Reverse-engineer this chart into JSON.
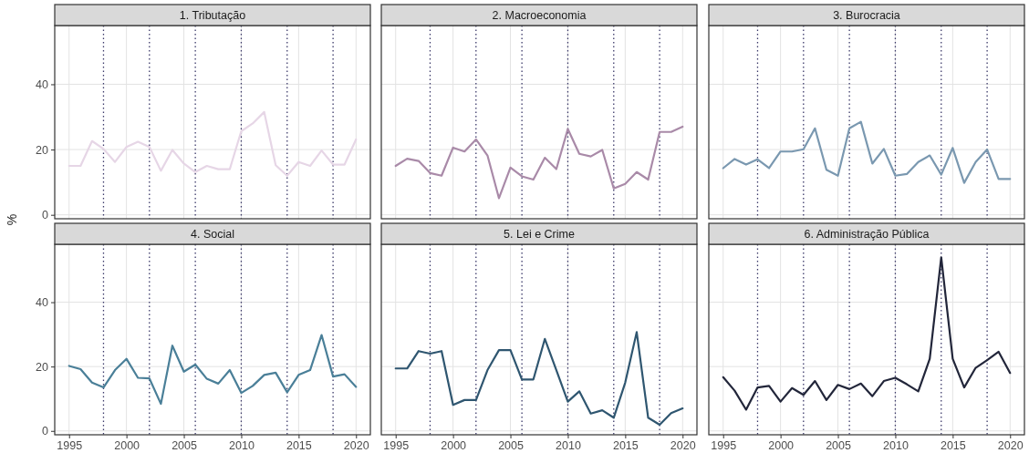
{
  "chart_data": [
    {
      "type": "line",
      "title": "1. Tributação",
      "ylabel": "%",
      "x": [
        1995,
        1996,
        1997,
        1998,
        1999,
        2000,
        2001,
        2002,
        2003,
        2004,
        2005,
        2006,
        2007,
        2008,
        2009,
        2010,
        2011,
        2012,
        2013,
        2014,
        2015,
        2016,
        2017,
        2018,
        2019,
        2020
      ],
      "series": [
        {
          "color": "#e6d6e6",
          "values": [
            15,
            15,
            22.6,
            20.2,
            16.2,
            20.8,
            22.4,
            20.8,
            13.5,
            19.9,
            15.7,
            13.1,
            15,
            14,
            14,
            25.6,
            28,
            31.5,
            15.2,
            12,
            16.2,
            15,
            19.7,
            15.4,
            15.4,
            23.1
          ]
        }
      ],
      "xlim": [
        1993.75,
        2021.25
      ],
      "ylim": [
        -1.2,
        58
      ],
      "xticks": [
        1995,
        2000,
        2005,
        2010,
        2015,
        2020
      ],
      "yticks": [
        0,
        20,
        40
      ],
      "grid": true,
      "tick_labels": "y",
      "ref_lines": [
        {
          "axis": "x",
          "value": 1998,
          "color": "#3c3a6a",
          "line_style": "dotted"
        },
        {
          "axis": "x",
          "value": 2002,
          "color": "#3c3a6a",
          "line_style": "dotted"
        },
        {
          "axis": "x",
          "value": 2006,
          "color": "#3c3a6a",
          "line_style": "dotted"
        },
        {
          "axis": "x",
          "value": 2010,
          "color": "#3c3a6a",
          "line_style": "dotted"
        },
        {
          "axis": "x",
          "value": 2014,
          "color": "#3c3a6a",
          "line_style": "dotted"
        },
        {
          "axis": "x",
          "value": 2018,
          "color": "#3c3a6a",
          "line_style": "dotted"
        }
      ]
    },
    {
      "type": "line",
      "title": "2. Macroeconomia",
      "x": [
        1995,
        1996,
        1997,
        1998,
        1999,
        2000,
        2001,
        2002,
        2003,
        2004,
        2005,
        2006,
        2007,
        2008,
        2009,
        2010,
        2011,
        2012,
        2013,
        2014,
        2015,
        2016,
        2017,
        2018,
        2019,
        2020
      ],
      "series": [
        {
          "color": "#a98aa8",
          "values": [
            15,
            17.2,
            16.5,
            12.8,
            12,
            20.6,
            19.4,
            23.1,
            18.2,
            5.1,
            14.5,
            11.8,
            10.8,
            17.5,
            14,
            26.3,
            18.7,
            17.9,
            19.9,
            8.1,
            9.5,
            13.1,
            10.8,
            25.4,
            25.4,
            27
          ]
        }
      ],
      "xlim": [
        1993.75,
        2021.25
      ],
      "ylim": [
        -1.2,
        58
      ],
      "xticks": [
        1995,
        2000,
        2005,
        2010,
        2015,
        2020
      ],
      "yticks": [
        0,
        20,
        40
      ],
      "grid": true,
      "tick_labels": false,
      "ref_lines": [
        {
          "axis": "x",
          "value": 1998,
          "color": "#3c3a6a",
          "line_style": "dotted"
        },
        {
          "axis": "x",
          "value": 2002,
          "color": "#3c3a6a",
          "line_style": "dotted"
        },
        {
          "axis": "x",
          "value": 2006,
          "color": "#3c3a6a",
          "line_style": "dotted"
        },
        {
          "axis": "x",
          "value": 2010,
          "color": "#3c3a6a",
          "line_style": "dotted"
        },
        {
          "axis": "x",
          "value": 2014,
          "color": "#3c3a6a",
          "line_style": "dotted"
        },
        {
          "axis": "x",
          "value": 2018,
          "color": "#3c3a6a",
          "line_style": "dotted"
        }
      ]
    },
    {
      "type": "line",
      "title": "3. Burocracia",
      "x": [
        1995,
        1996,
        1997,
        1998,
        1999,
        2000,
        2001,
        2002,
        2003,
        2004,
        2005,
        2006,
        2007,
        2008,
        2009,
        2010,
        2011,
        2012,
        2013,
        2014,
        2015,
        2016,
        2017,
        2018,
        2019,
        2020
      ],
      "series": [
        {
          "color": "#7a98b0",
          "values": [
            14.3,
            17.1,
            15.4,
            17,
            14.3,
            19.4,
            19.4,
            20.1,
            26.5,
            13.8,
            12,
            26.5,
            28.5,
            15.7,
            20.2,
            12,
            12.5,
            16.2,
            18.2,
            12.3,
            20.5,
            9.8,
            16.2,
            20,
            11,
            11
          ]
        }
      ],
      "xlim": [
        1993.75,
        2021.25
      ],
      "ylim": [
        -1.2,
        58
      ],
      "xticks": [
        1995,
        2000,
        2005,
        2010,
        2015,
        2020
      ],
      "yticks": [
        0,
        20,
        40
      ],
      "grid": true,
      "tick_labels": false,
      "ref_lines": [
        {
          "axis": "x",
          "value": 1998,
          "color": "#3c3a6a",
          "line_style": "dotted"
        },
        {
          "axis": "x",
          "value": 2002,
          "color": "#3c3a6a",
          "line_style": "dotted"
        },
        {
          "axis": "x",
          "value": 2006,
          "color": "#3c3a6a",
          "line_style": "dotted"
        },
        {
          "axis": "x",
          "value": 2010,
          "color": "#3c3a6a",
          "line_style": "dotted"
        },
        {
          "axis": "x",
          "value": 2014,
          "color": "#3c3a6a",
          "line_style": "dotted"
        },
        {
          "axis": "x",
          "value": 2018,
          "color": "#3c3a6a",
          "line_style": "dotted"
        }
      ]
    },
    {
      "type": "line",
      "title": "4. Social",
      "x": [
        1995,
        1996,
        1997,
        1998,
        1999,
        2000,
        2001,
        2002,
        2003,
        2004,
        2005,
        2006,
        2007,
        2008,
        2009,
        2010,
        2011,
        2012,
        2013,
        2014,
        2015,
        2016,
        2017,
        2018,
        2019,
        2020
      ],
      "series": [
        {
          "color": "#4a7f98",
          "values": [
            20.2,
            19.2,
            15,
            13.5,
            18.9,
            22.4,
            16.5,
            16.3,
            8.4,
            26.5,
            18.4,
            20.6,
            16.2,
            14.7,
            18.9,
            11.8,
            14,
            17.4,
            18.1,
            12,
            17.4,
            18.9,
            29.8,
            16.9,
            17.6,
            13.7
          ]
        }
      ],
      "xlim": [
        1993.75,
        2021.25
      ],
      "ylim": [
        -1.2,
        58
      ],
      "xticks": [
        1995,
        2000,
        2005,
        2010,
        2015,
        2020
      ],
      "yticks": [
        0,
        20,
        40
      ],
      "grid": true,
      "ref_lines": [
        {
          "axis": "x",
          "value": 1998,
          "color": "#3c3a6a",
          "line_style": "dotted"
        },
        {
          "axis": "x",
          "value": 2002,
          "color": "#3c3a6a",
          "line_style": "dotted"
        },
        {
          "axis": "x",
          "value": 2006,
          "color": "#3c3a6a",
          "line_style": "dotted"
        },
        {
          "axis": "x",
          "value": 2010,
          "color": "#3c3a6a",
          "line_style": "dotted"
        },
        {
          "axis": "x",
          "value": 2014,
          "color": "#3c3a6a",
          "line_style": "dotted"
        },
        {
          "axis": "x",
          "value": 2018,
          "color": "#3c3a6a",
          "line_style": "dotted"
        }
      ]
    },
    {
      "type": "line",
      "title": "5. Lei e Crime",
      "x": [
        1995,
        1996,
        1997,
        1998,
        1999,
        2000,
        2001,
        2002,
        2003,
        2004,
        2005,
        2006,
        2007,
        2008,
        2009,
        2010,
        2011,
        2012,
        2013,
        2014,
        2015,
        2016,
        2017,
        2018,
        2019,
        2020
      ],
      "series": [
        {
          "color": "#2f5670",
          "values": [
            19.4,
            19.4,
            24.8,
            24,
            24.8,
            8.1,
            9.6,
            9.6,
            18.9,
            25.1,
            25.1,
            16,
            16,
            28.6,
            18.9,
            9.1,
            12.3,
            5.4,
            6.4,
            4.1,
            15,
            30.7,
            4.1,
            1.9,
            5.5,
            7
          ]
        }
      ],
      "xlim": [
        1993.75,
        2021.25
      ],
      "ylim": [
        -1.2,
        58
      ],
      "xticks": [
        1995,
        2000,
        2005,
        2010,
        2015,
        2020
      ],
      "yticks": [
        0,
        20,
        40
      ],
      "grid": true,
      "tick_labels": "x",
      "ref_lines": [
        {
          "axis": "x",
          "value": 1998,
          "color": "#3c3a6a",
          "line_style": "dotted"
        },
        {
          "axis": "x",
          "value": 2002,
          "color": "#3c3a6a",
          "line_style": "dotted"
        },
        {
          "axis": "x",
          "value": 2006,
          "color": "#3c3a6a",
          "line_style": "dotted"
        },
        {
          "axis": "x",
          "value": 2010,
          "color": "#3c3a6a",
          "line_style": "dotted"
        },
        {
          "axis": "x",
          "value": 2014,
          "color": "#3c3a6a",
          "line_style": "dotted"
        },
        {
          "axis": "x",
          "value": 2018,
          "color": "#3c3a6a",
          "line_style": "dotted"
        }
      ]
    },
    {
      "type": "line",
      "title": "6. Administração Pública",
      "x": [
        1995,
        1996,
        1997,
        1998,
        1999,
        2000,
        2001,
        2002,
        2003,
        2004,
        2005,
        2006,
        2007,
        2008,
        2009,
        2010,
        2011,
        2012,
        2013,
        2014,
        2015,
        2016,
        2017,
        2018,
        2019,
        2020
      ],
      "series": [
        {
          "color": "#22263a",
          "values": [
            16.7,
            12.5,
            6.6,
            13.5,
            14,
            9.1,
            13.3,
            11.2,
            15.5,
            9.6,
            14.3,
            13,
            14.7,
            10.8,
            15.5,
            16.5,
            14.5,
            12.3,
            22.4,
            53.9,
            22.4,
            13.5,
            19.6,
            22,
            24.6,
            18
          ]
        }
      ],
      "xlim": [
        1993.75,
        2021.25
      ],
      "ylim": [
        -1.2,
        58
      ],
      "xticks": [
        1995,
        2000,
        2005,
        2010,
        2015,
        2020
      ],
      "yticks": [
        0,
        20,
        40
      ],
      "grid": true,
      "tick_labels": "x",
      "ref_lines": [
        {
          "axis": "x",
          "value": 1998,
          "color": "#3c3a6a",
          "line_style": "dotted"
        },
        {
          "axis": "x",
          "value": 2002,
          "color": "#3c3a6a",
          "line_style": "dotted"
        },
        {
          "axis": "x",
          "value": 2006,
          "color": "#3c3a6a",
          "line_style": "dotted"
        },
        {
          "axis": "x",
          "value": 2010,
          "color": "#3c3a6a",
          "line_style": "dotted"
        },
        {
          "axis": "x",
          "value": 2014,
          "color": "#3c3a6a",
          "line_style": "dotted"
        },
        {
          "axis": "x",
          "value": 2018,
          "color": "#3c3a6a",
          "line_style": "dotted"
        }
      ]
    }
  ]
}
